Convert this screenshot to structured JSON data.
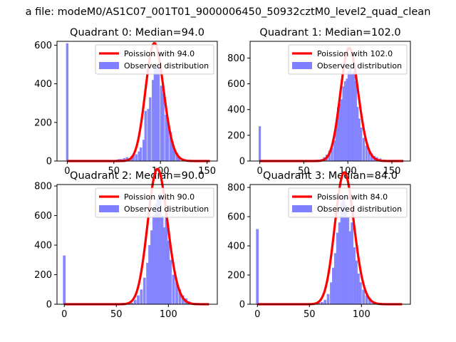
{
  "figure": {
    "suptitle": "a file: modeM0/AS1C07_001T01_9000006450_50932cztM0_level2_quad_clean"
  },
  "colors": {
    "hist": "#8080ff",
    "poisson": "#ff0000",
    "axes": "#000000",
    "legend_border": "#cccccc"
  },
  "chart_data": [
    {
      "type": "bar",
      "title": "Quadrant 0: Median=94.0",
      "median": 94.0,
      "xlim": [
        -11,
        161
      ],
      "ylim": [
        0,
        620
      ],
      "xticks": [
        0,
        50,
        100,
        150
      ],
      "yticks": [
        0,
        200,
        400,
        600
      ],
      "legend": [
        "Poission with 94.0",
        "Observed distribution"
      ],
      "hist_counts": [
        {
          "x": 0,
          "y": 610
        },
        {
          "x": 52,
          "y": 5
        },
        {
          "x": 54,
          "y": 8
        },
        {
          "x": 56,
          "y": 10
        },
        {
          "x": 58,
          "y": 10
        },
        {
          "x": 61,
          "y": 15
        },
        {
          "x": 64,
          "y": 20
        },
        {
          "x": 66,
          "y": 15
        },
        {
          "x": 69,
          "y": 25
        },
        {
          "x": 71,
          "y": 30
        },
        {
          "x": 74,
          "y": 35
        },
        {
          "x": 77,
          "y": 50
        },
        {
          "x": 79,
          "y": 70
        },
        {
          "x": 82,
          "y": 110
        },
        {
          "x": 84,
          "y": 260
        },
        {
          "x": 87,
          "y": 270
        },
        {
          "x": 89,
          "y": 330
        },
        {
          "x": 92,
          "y": 420
        },
        {
          "x": 94,
          "y": 480
        },
        {
          "x": 96,
          "y": 500
        },
        {
          "x": 98,
          "y": 490
        },
        {
          "x": 101,
          "y": 390
        },
        {
          "x": 103,
          "y": 350
        },
        {
          "x": 106,
          "y": 240
        },
        {
          "x": 108,
          "y": 210
        },
        {
          "x": 111,
          "y": 150
        },
        {
          "x": 113,
          "y": 100
        },
        {
          "x": 115,
          "y": 60
        },
        {
          "x": 118,
          "y": 40
        },
        {
          "x": 120,
          "y": 20
        }
      ]
    },
    {
      "type": "bar",
      "title": "Quadrant 1: Median=102.0",
      "median": 102.0,
      "xlim": [
        -11,
        171
      ],
      "ylim": [
        0,
        930
      ],
      "xticks": [
        0,
        50,
        100,
        150
      ],
      "yticks": [
        0,
        200,
        400,
        600,
        800
      ],
      "legend": [
        "Poission with 102.0",
        "Observed distribution"
      ],
      "hist_counts": [
        {
          "x": 0,
          "y": 270
        },
        {
          "x": 55,
          "y": 5
        },
        {
          "x": 58,
          "y": 5
        },
        {
          "x": 61,
          "y": 5
        },
        {
          "x": 64,
          "y": 10
        },
        {
          "x": 67,
          "y": 10
        },
        {
          "x": 70,
          "y": 15
        },
        {
          "x": 73,
          "y": 30
        },
        {
          "x": 76,
          "y": 50
        },
        {
          "x": 79,
          "y": 80
        },
        {
          "x": 82,
          "y": 100
        },
        {
          "x": 85,
          "y": 160
        },
        {
          "x": 87,
          "y": 280
        },
        {
          "x": 89,
          "y": 420
        },
        {
          "x": 91,
          "y": 450
        },
        {
          "x": 93,
          "y": 480
        },
        {
          "x": 95,
          "y": 580
        },
        {
          "x": 97,
          "y": 620
        },
        {
          "x": 99,
          "y": 640
        },
        {
          "x": 101,
          "y": 700
        },
        {
          "x": 103,
          "y": 720
        },
        {
          "x": 105,
          "y": 680
        },
        {
          "x": 107,
          "y": 700
        },
        {
          "x": 109,
          "y": 620
        },
        {
          "x": 111,
          "y": 420
        },
        {
          "x": 113,
          "y": 330
        },
        {
          "x": 115,
          "y": 260
        },
        {
          "x": 118,
          "y": 180
        },
        {
          "x": 121,
          "y": 120
        },
        {
          "x": 124,
          "y": 90
        },
        {
          "x": 127,
          "y": 60
        },
        {
          "x": 130,
          "y": 40
        },
        {
          "x": 133,
          "y": 30
        },
        {
          "x": 137,
          "y": 20
        },
        {
          "x": 141,
          "y": 10
        },
        {
          "x": 147,
          "y": 5
        },
        {
          "x": 160,
          "y": 5
        }
      ]
    },
    {
      "type": "bar",
      "title": "Quadrant 2: Median=90.0",
      "median": 90.0,
      "xlim": [
        -7,
        147
      ],
      "ylim": [
        0,
        810
      ],
      "xticks": [
        0,
        50,
        100
      ],
      "yticks": [
        0,
        200,
        400,
        600,
        800
      ],
      "legend": [
        "Poission with 90.0",
        "Observed distribution"
      ],
      "hist_counts": [
        {
          "x": 0,
          "y": 330
        },
        {
          "x": 59,
          "y": 5
        },
        {
          "x": 62,
          "y": 5
        },
        {
          "x": 65,
          "y": 10
        },
        {
          "x": 68,
          "y": 30
        },
        {
          "x": 71,
          "y": 60
        },
        {
          "x": 74,
          "y": 100
        },
        {
          "x": 77,
          "y": 180
        },
        {
          "x": 80,
          "y": 280
        },
        {
          "x": 82,
          "y": 400
        },
        {
          "x": 84,
          "y": 500
        },
        {
          "x": 86,
          "y": 600
        },
        {
          "x": 88,
          "y": 680
        },
        {
          "x": 90,
          "y": 720
        },
        {
          "x": 92,
          "y": 750
        },
        {
          "x": 94,
          "y": 600
        },
        {
          "x": 96,
          "y": 520
        },
        {
          "x": 98,
          "y": 600
        },
        {
          "x": 100,
          "y": 430
        },
        {
          "x": 102,
          "y": 300
        },
        {
          "x": 105,
          "y": 200
        },
        {
          "x": 108,
          "y": 150
        },
        {
          "x": 111,
          "y": 100
        },
        {
          "x": 114,
          "y": 60
        },
        {
          "x": 117,
          "y": 40
        },
        {
          "x": 120,
          "y": 20
        },
        {
          "x": 123,
          "y": 10
        }
      ]
    },
    {
      "type": "bar",
      "title": "Quadrant 3: Median=84.0",
      "median": 84.0,
      "xlim": [
        -7,
        147
      ],
      "ylim": [
        0,
        820
      ],
      "xticks": [
        0,
        50,
        100
      ],
      "yticks": [
        0,
        200,
        400,
        600,
        800
      ],
      "legend": [
        "Poission with 84.0",
        "Observed distribution"
      ],
      "hist_counts": [
        {
          "x": 0,
          "y": 515
        },
        {
          "x": 52,
          "y": 5
        },
        {
          "x": 56,
          "y": 5
        },
        {
          "x": 59,
          "y": 10
        },
        {
          "x": 62,
          "y": 15
        },
        {
          "x": 65,
          "y": 30
        },
        {
          "x": 68,
          "y": 70
        },
        {
          "x": 71,
          "y": 150
        },
        {
          "x": 73,
          "y": 250
        },
        {
          "x": 75,
          "y": 350
        },
        {
          "x": 77,
          "y": 490
        },
        {
          "x": 79,
          "y": 560
        },
        {
          "x": 81,
          "y": 700
        },
        {
          "x": 83,
          "y": 740
        },
        {
          "x": 85,
          "y": 680
        },
        {
          "x": 87,
          "y": 600
        },
        {
          "x": 89,
          "y": 500
        },
        {
          "x": 91,
          "y": 560
        },
        {
          "x": 93,
          "y": 390
        },
        {
          "x": 95,
          "y": 300
        },
        {
          "x": 97,
          "y": 210
        },
        {
          "x": 99,
          "y": 150
        },
        {
          "x": 102,
          "y": 100
        },
        {
          "x": 105,
          "y": 60
        },
        {
          "x": 108,
          "y": 40
        },
        {
          "x": 111,
          "y": 20
        },
        {
          "x": 115,
          "y": 10
        }
      ]
    }
  ]
}
